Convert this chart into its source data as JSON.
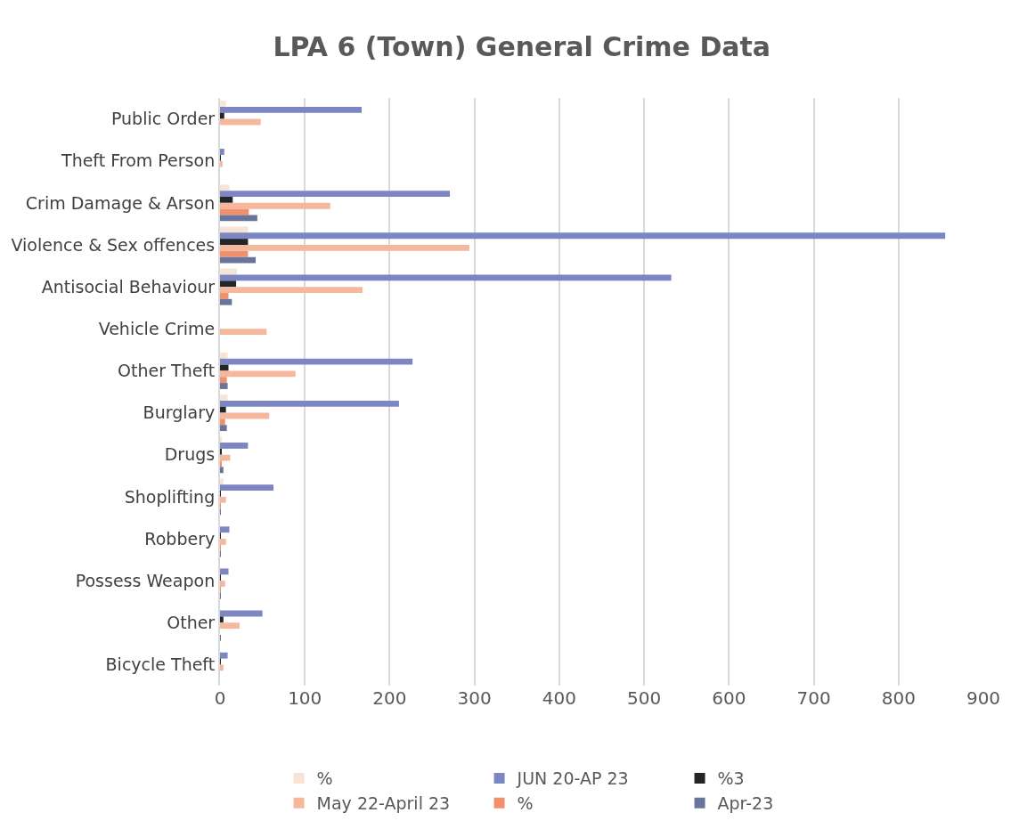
{
  "chart_data": {
    "type": "bar",
    "orientation": "horizontal",
    "title": "LPA 6 (Town) General Crime Data",
    "categories": [
      "Public Order",
      "Theft From Person",
      "Crim Damage & Arson",
      "Violence & Sex offences",
      "Antisocial Behaviour",
      "Vehicle Crime",
      "Other Theft",
      "Burglary",
      "Drugs",
      "Shoplifting",
      "Robbery",
      "Possess Weapon",
      "Other",
      "Bicycle Theft"
    ],
    "series": [
      {
        "name": "%",
        "color": "#f6e4d8",
        "values": [
          7,
          null,
          11,
          33,
          20,
          null,
          9,
          9,
          2,
          4,
          null,
          null,
          null,
          null
        ]
      },
      {
        "name": "JUN 20-AP 23",
        "color": "#7b86c2",
        "values": [
          167,
          5,
          271,
          855,
          532,
          null,
          227,
          211,
          33,
          63,
          11,
          10,
          50,
          9
        ]
      },
      {
        "name": "%3",
        "color": "#222629",
        "values": [
          5,
          1,
          15,
          33,
          19,
          null,
          10,
          7,
          2,
          1,
          1,
          1,
          4,
          1
        ]
      },
      {
        "name": "May 22-April 23",
        "color": "#f5b89c",
        "values": [
          48,
          3,
          130,
          294,
          168,
          55,
          89,
          58,
          12,
          7,
          7,
          6,
          23,
          4
        ]
      },
      {
        "name": "%",
        "color": "#f2906c",
        "values": [
          null,
          null,
          34,
          33,
          10,
          null,
          8,
          6,
          2,
          1,
          1,
          1,
          null,
          null
        ]
      },
      {
        "name": "Apr-23",
        "color": "#68749c",
        "values": [
          null,
          null,
          44,
          42,
          14,
          null,
          9,
          8,
          4,
          1,
          1,
          1,
          1,
          null
        ]
      }
    ],
    "xlim": [
      0,
      900
    ],
    "xticks": [
      0,
      100,
      200,
      300,
      400,
      500,
      600,
      700,
      800,
      900
    ],
    "grid": "x",
    "legend": "bottom"
  }
}
